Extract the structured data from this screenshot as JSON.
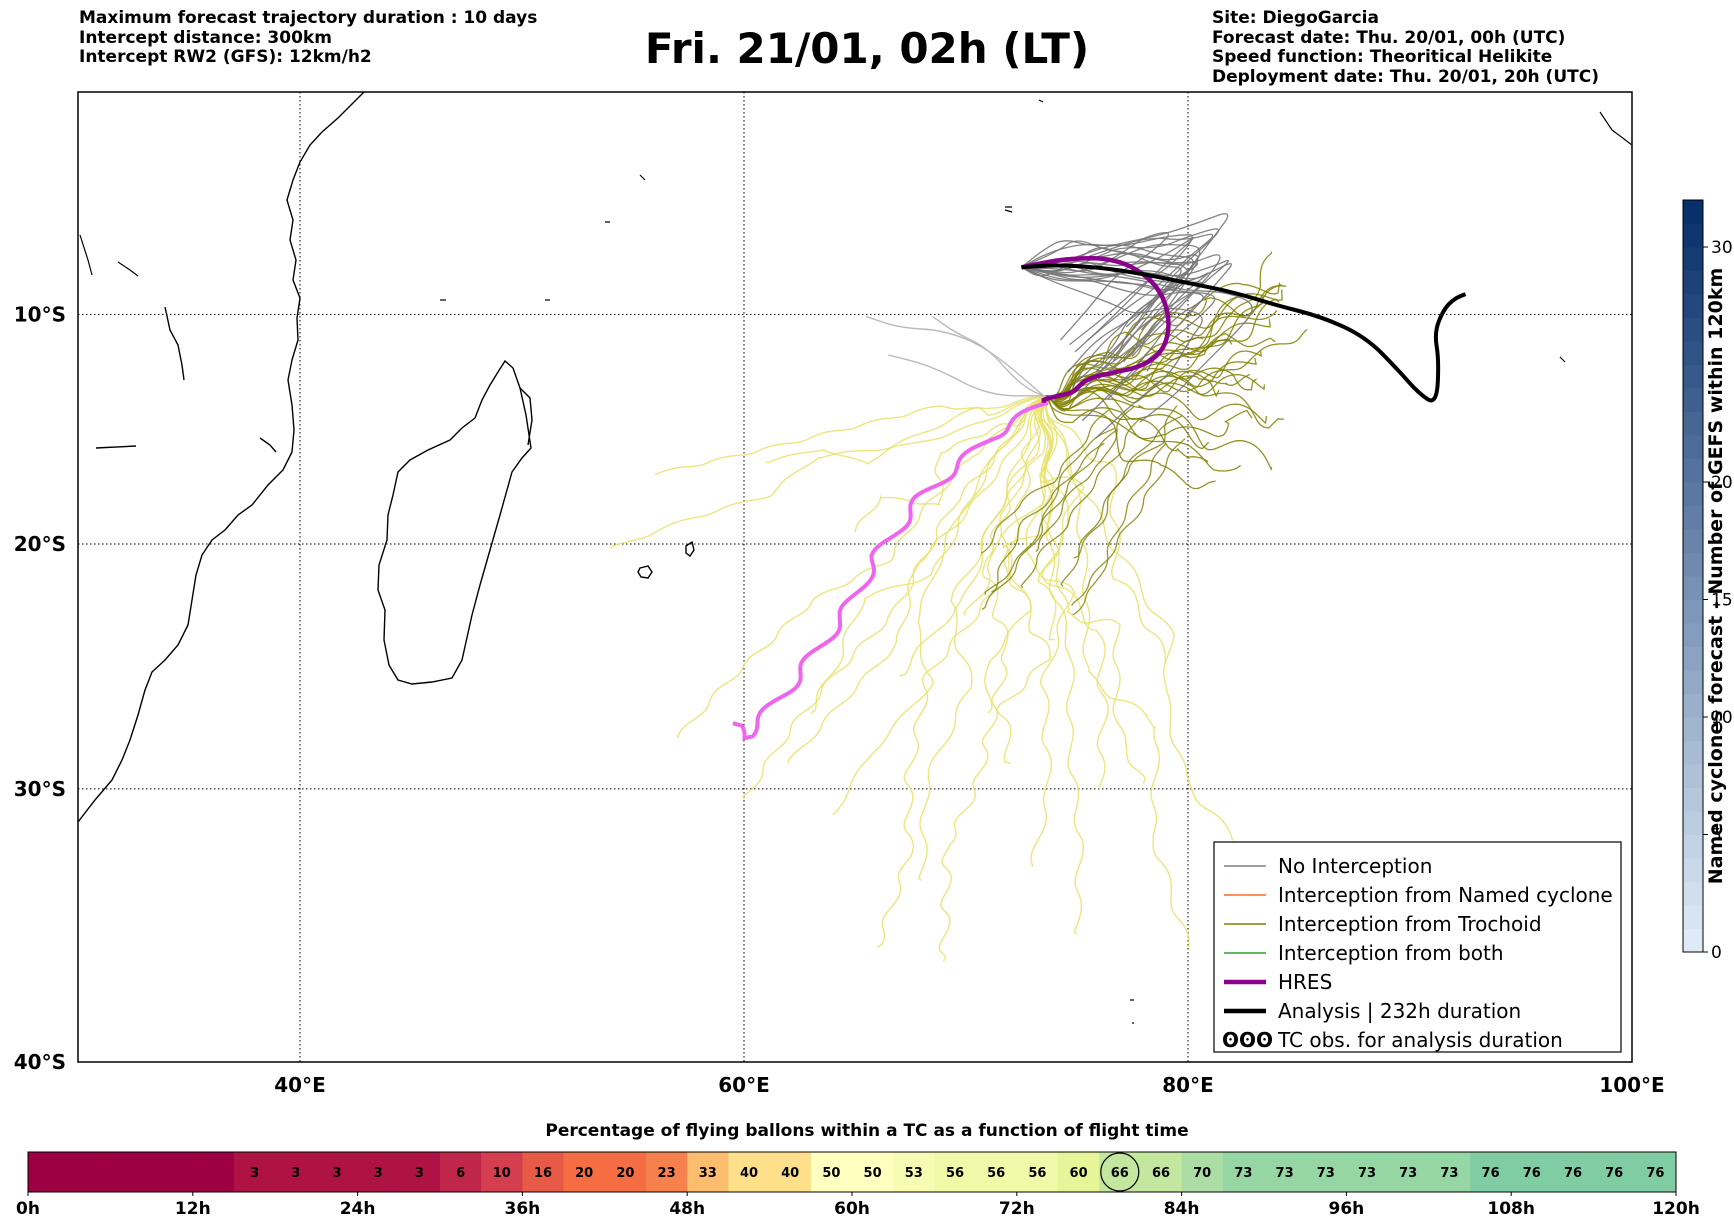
{
  "header_left": [
    "Maximum forecast trajectory duration : 10 days",
    "Intercept distance: 300km",
    "Intercept RW2 (GFS):  12km/h2"
  ],
  "title": "Fri. 21/01, 02h (LT)",
  "header_right": [
    "Site: DiegoGarcia",
    "Forecast date: Thu. 20/01, 00h (UTC)",
    "Speed function: Theoritical Helikite",
    "Deployment date: Thu. 20/01, 20h (UTC)"
  ],
  "map": {
    "lon_ticks": [
      "40°E",
      "60°E",
      "80°E",
      "100°E"
    ],
    "lat_ticks": [
      "10°S",
      "20°S",
      "30°S",
      "40°S"
    ],
    "lon_range": [
      30,
      100
    ],
    "lat_range": [
      -40,
      -1
    ]
  },
  "legend": [
    {
      "label": "No Interception",
      "color": "#808080"
    },
    {
      "label": "Interception from Named cyclone",
      "color": "#ff6a2a"
    },
    {
      "label": "Interception from Trochoid",
      "color": "#808000"
    },
    {
      "label": "Interception from both",
      "color": "#2ca02c"
    },
    {
      "label": "HRES",
      "color": "#8b008b"
    },
    {
      "label": "Analysis | 232h duration",
      "color": "#000000"
    },
    {
      "label": "TC obs. for analysis duration",
      "icon": "ʘʘʘ"
    }
  ],
  "legend_icon_text": "ʘʘʘ",
  "right_colorbar": {
    "label": "Named cyclones forecast - Number of GEFS within 120km",
    "ticks": [
      "0",
      "5",
      "10",
      "15",
      "20",
      "30"
    ],
    "range": [
      0,
      32
    ]
  },
  "chart_data": [
    {
      "type": "line",
      "title": "Fri. 21/01, 02h (LT)",
      "series": [
        {
          "name": "HRES",
          "lon": [
            72.5,
            74.5,
            76.8,
            78.5,
            79.2,
            79.0,
            78.0,
            76.5,
            74.0,
            71.0,
            68.0,
            66.0,
            64.5,
            62.0,
            60.0,
            59.5
          ],
          "lat": [
            -7.9,
            -7.5,
            -7.5,
            -8.5,
            -10.0,
            -11.5,
            -12.3,
            -12.6,
            -13.6,
            -15.5,
            -18.0,
            -20.5,
            -23.0,
            -26.0,
            -28.0,
            -27.4
          ]
        },
        {
          "name": "Analysis | 232h duration",
          "lon": [
            72.5,
            74.0,
            76.0,
            78.0,
            80.0,
            82.0,
            84.0,
            86.0,
            88.0,
            89.5,
            90.4,
            91.2,
            91.3,
            91.1,
            91.5,
            92.0,
            92.5
          ],
          "lat": [
            -7.9,
            -7.8,
            -7.9,
            -8.2,
            -8.6,
            -9.0,
            -9.6,
            -10.1,
            -11.0,
            -12.5,
            -13.5,
            -14.0,
            -12.0,
            -10.8,
            -9.8,
            -9.3,
            -9.1
          ]
        }
      ]
    },
    {
      "type": "bar",
      "title": "Percentage of flying ballons within a TC as a function of flight time",
      "xlabel": "",
      "x_tick_labels": [
        "0h",
        "12h",
        "24h",
        "36h",
        "48h",
        "60h",
        "72h",
        "84h",
        "96h",
        "108h",
        "120h"
      ],
      "values": [
        0,
        0,
        0,
        0,
        0,
        3,
        3,
        3,
        3,
        3,
        6,
        10,
        16,
        20,
        20,
        23,
        33,
        40,
        40,
        50,
        50,
        53,
        56,
        56,
        56,
        60,
        66,
        66,
        70,
        73,
        73,
        73,
        73,
        73,
        73,
        76,
        76,
        76,
        76,
        76
      ],
      "ylim": [
        0,
        100
      ],
      "highlight_index": 26
    }
  ],
  "bottom_colorbar_title": "Percentage of flying ballons within a TC as a function of flight time"
}
